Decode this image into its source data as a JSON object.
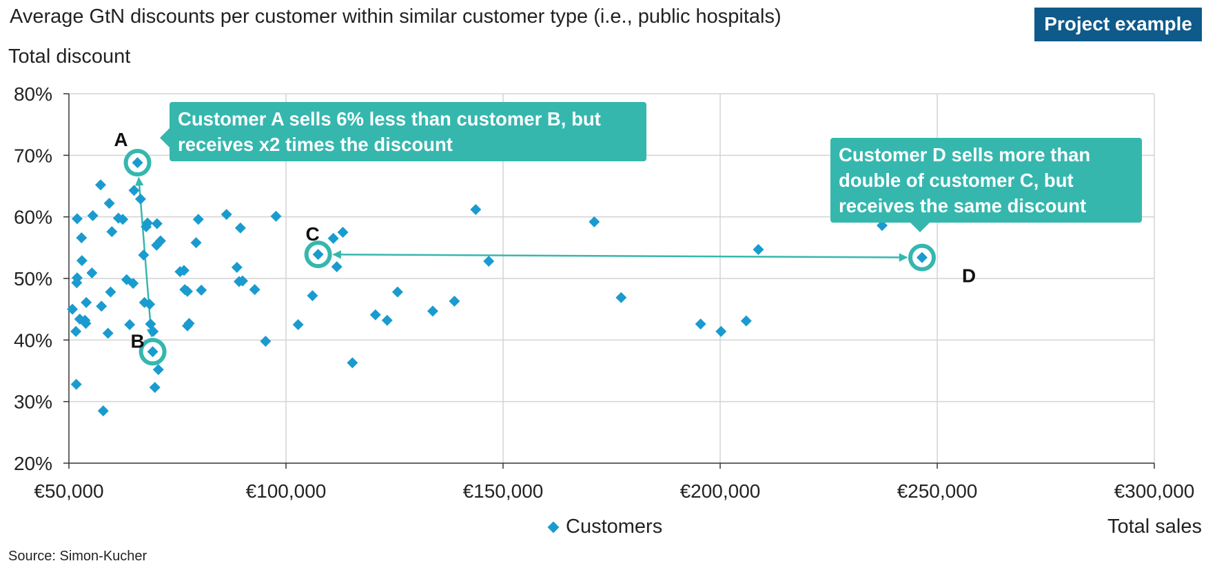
{
  "header": {
    "title": "Average GtN discounts per customer within similar customer type (i.e., public hospitals)",
    "badge": "Project example"
  },
  "footer": {
    "source": "Source: Simon-Kucher"
  },
  "colors": {
    "marker": "#1a9bcf",
    "highlight": "#35b7ae",
    "badge": "#0e5a8a",
    "grid": "#d3d3d3"
  },
  "callouts": {
    "a": "Customer A sells 6% less than customer B, but receives x2 times the discount",
    "d": "Customer D sells more than double of customer C, but receives the same discount"
  },
  "chart_data": {
    "type": "scatter",
    "ylabel": "Total discount",
    "xlabel": "Total sales",
    "xlim": [
      50000,
      300000
    ],
    "ylim": [
      20,
      80
    ],
    "xticks": [
      "€50,000",
      "€100,000",
      "€150,000",
      "€200,000",
      "€250,000",
      "€300,000"
    ],
    "yticks": [
      "20%",
      "30%",
      "40%",
      "50%",
      "60%",
      "70%",
      "80%"
    ],
    "grid": true,
    "legend": "bottom-center",
    "series": [
      {
        "name": "Customers",
        "points": [
          [
            50800,
            45
          ],
          [
            51600,
            41.4
          ],
          [
            51700,
            32.8
          ],
          [
            51800,
            49.3
          ],
          [
            51900,
            50.1
          ],
          [
            51900,
            59.7
          ],
          [
            52500,
            43.4
          ],
          [
            52900,
            56.6
          ],
          [
            53000,
            52.9
          ],
          [
            53700,
            43.2
          ],
          [
            53900,
            42.7
          ],
          [
            54000,
            46.1
          ],
          [
            55300,
            50.9
          ],
          [
            55500,
            60.2
          ],
          [
            57300,
            65.2
          ],
          [
            57500,
            45.5
          ],
          [
            57900,
            28.5
          ],
          [
            59000,
            41.1
          ],
          [
            59300,
            62.2
          ],
          [
            59600,
            47.8
          ],
          [
            59900,
            57.6
          ],
          [
            61400,
            59.8
          ],
          [
            62400,
            59.6
          ],
          [
            63300,
            49.8
          ],
          [
            64000,
            42.5
          ],
          [
            64800,
            49.2
          ],
          [
            65000,
            64.3
          ],
          [
            65800,
            68.8
          ],
          [
            66500,
            62.9
          ],
          [
            67200,
            53.8
          ],
          [
            67400,
            46.1
          ],
          [
            67800,
            58.4
          ],
          [
            68100,
            59.0
          ],
          [
            68600,
            45.8
          ],
          [
            68800,
            42.6
          ],
          [
            69300,
            38.1
          ],
          [
            69400,
            41.4
          ],
          [
            69800,
            32.3
          ],
          [
            70200,
            55.4
          ],
          [
            70300,
            58.9
          ],
          [
            70600,
            35.2
          ],
          [
            71100,
            56.1
          ],
          [
            75600,
            51.1
          ],
          [
            76500,
            51.3
          ],
          [
            76700,
            48.2
          ],
          [
            77300,
            47.9
          ],
          [
            77300,
            42.3
          ],
          [
            77700,
            42.7
          ],
          [
            79300,
            55.8
          ],
          [
            79800,
            59.6
          ],
          [
            80500,
            48.1
          ],
          [
            86300,
            60.4
          ],
          [
            88700,
            51.8
          ],
          [
            89200,
            49.5
          ],
          [
            89500,
            58.2
          ],
          [
            90000,
            49.6
          ],
          [
            92800,
            48.2
          ],
          [
            95300,
            39.8
          ],
          [
            97700,
            60.1
          ],
          [
            102800,
            42.5
          ],
          [
            106100,
            47.2
          ],
          [
            107400,
            53.9
          ],
          [
            110900,
            56.5
          ],
          [
            111700,
            51.9
          ],
          [
            113100,
            57.5
          ],
          [
            115300,
            36.3
          ],
          [
            120600,
            44.1
          ],
          [
            123300,
            43.2
          ],
          [
            125700,
            47.8
          ],
          [
            133800,
            44.7
          ],
          [
            138800,
            46.3
          ],
          [
            143700,
            61.2
          ],
          [
            146700,
            52.8
          ],
          [
            171000,
            59.2
          ],
          [
            177200,
            46.9
          ],
          [
            195500,
            42.6
          ],
          [
            200200,
            41.4
          ],
          [
            206000,
            43.1
          ],
          [
            208800,
            54.7
          ],
          [
            237300,
            58.6
          ],
          [
            246500,
            53.4
          ]
        ]
      }
    ],
    "highlighted": [
      {
        "label": "A",
        "x": 65800,
        "y": 68.8
      },
      {
        "label": "B",
        "x": 69300,
        "y": 38.1
      },
      {
        "label": "C",
        "x": 107400,
        "y": 53.9
      },
      {
        "label": "D",
        "x": 246500,
        "y": 53.4
      }
    ]
  }
}
